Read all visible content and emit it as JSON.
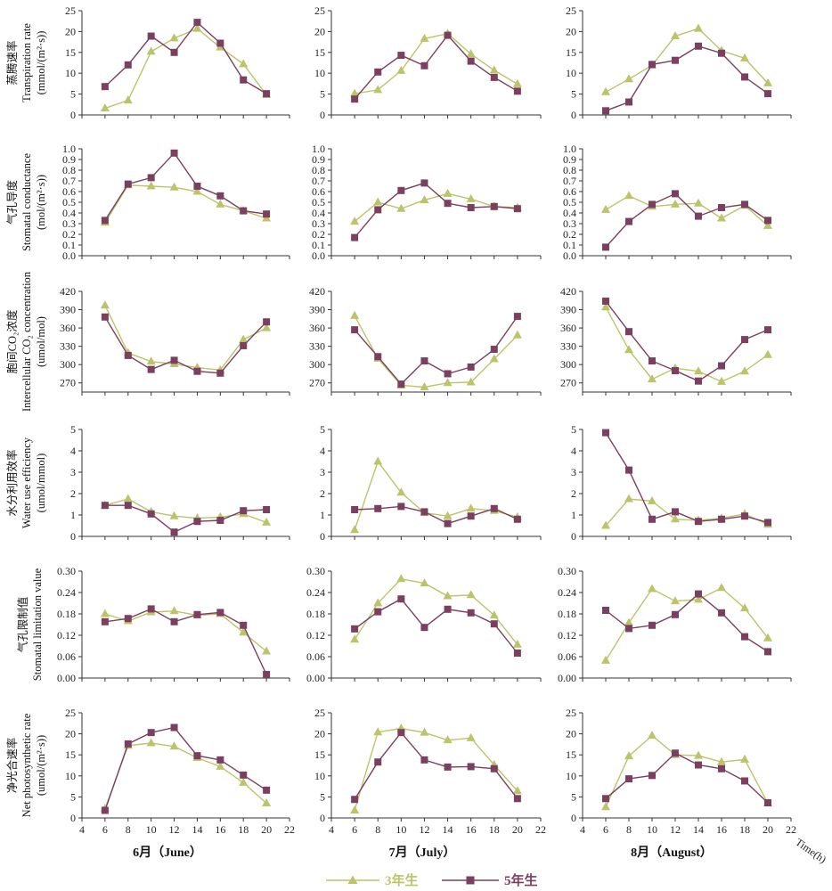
{
  "colors": {
    "series_3yr": "#bcc46a",
    "series_5yr": "#7b3f60",
    "axis": "#333333"
  },
  "legend": {
    "items": [
      {
        "label": "3年生",
        "color": "#bcc46a",
        "marker": "triangle"
      },
      {
        "label": "5年生",
        "color": "#7b3f60",
        "marker": "square"
      }
    ]
  },
  "x_axis": {
    "label": "Time(h)",
    "ticks": [
      4,
      6,
      8,
      10,
      12,
      14,
      16,
      18,
      20,
      22
    ],
    "range": [
      4,
      22
    ]
  },
  "columns": [
    {
      "label": "6月（June）"
    },
    {
      "label": "7月（July）"
    },
    {
      "label": "8月（August）"
    }
  ],
  "rows": [
    {
      "label_cn": "蒸腾速率",
      "label_en": "Transpiration rate",
      "label_unit": "(mmol/(m²·s))",
      "ylim": [
        0,
        25
      ],
      "yticks": [
        "0",
        "5",
        "10",
        "15",
        "20",
        "25"
      ]
    },
    {
      "label_cn": "气孔导度",
      "label_en": "Stomatal conductance",
      "label_unit": "(mol/(m²·s))",
      "ylim": [
        0,
        1.0
      ],
      "yticks": [
        "0.0",
        "0.1",
        "0.2",
        "0.3",
        "0.4",
        "0.5",
        "0.6",
        "0.7",
        "0.8",
        "0.9",
        "1.0"
      ]
    },
    {
      "label_cn": "胞间CO₂浓度",
      "label_en": "Intercellular CO₂ concentration",
      "label_unit": "(umol/mol)",
      "ylim": [
        255,
        420
      ],
      "yticks": [
        "270",
        "300",
        "330",
        "360",
        "390",
        "420"
      ]
    },
    {
      "label_cn": "水分利用效率",
      "label_en": "Water use efficiency",
      "label_unit": "(umol/mmol)",
      "ylim": [
        0,
        5
      ],
      "yticks": [
        "0",
        "1",
        "2",
        "3",
        "4",
        "5"
      ]
    },
    {
      "label_cn": "气孔限制值",
      "label_en": "Stomatal limitation value",
      "label_unit": "",
      "ylim": [
        0,
        0.3
      ],
      "yticks": [
        "0.00",
        "0.06",
        "0.12",
        "0.18",
        "0.24",
        "0.30"
      ]
    },
    {
      "label_cn": "净光合速率",
      "label_en": "Net photosynthetic rate",
      "label_unit": "(umol/(m²·s))",
      "ylim": [
        0,
        25
      ],
      "yticks": [
        "0",
        "5",
        "10",
        "15",
        "20",
        "25"
      ]
    }
  ],
  "chart_data": [
    {
      "type": "line",
      "month": "6月（June）",
      "variable": "Transpiration rate",
      "x": [
        6,
        8,
        10,
        12,
        14,
        16,
        18,
        20
      ],
      "ylim": [
        0,
        25
      ],
      "series": [
        {
          "name": "3年生",
          "values": [
            1.6,
            3.5,
            15.2,
            18.4,
            20.7,
            16.2,
            12.2,
            4.8
          ]
        },
        {
          "name": "5年生",
          "values": [
            6.8,
            12.0,
            18.9,
            15.0,
            22.2,
            17.2,
            8.4,
            5.1
          ]
        }
      ]
    },
    {
      "type": "line",
      "month": "7月（July）",
      "variable": "Transpiration rate",
      "x": [
        6,
        8,
        10,
        12,
        14,
        16,
        18,
        20
      ],
      "ylim": [
        0,
        25
      ],
      "series": [
        {
          "name": "3年生",
          "values": [
            5.1,
            6.0,
            10.6,
            18.3,
            19.5,
            14.6,
            10.7,
            7.4
          ]
        },
        {
          "name": "5年生",
          "values": [
            3.8,
            10.3,
            14.3,
            11.8,
            19.1,
            12.9,
            9.0,
            5.7
          ]
        }
      ]
    },
    {
      "type": "line",
      "month": "8月（August）",
      "variable": "Transpiration rate",
      "x": [
        6,
        8,
        10,
        12,
        14,
        16,
        18,
        20
      ],
      "ylim": [
        0,
        25
      ],
      "series": [
        {
          "name": "3年生",
          "values": [
            5.5,
            8.6,
            11.9,
            18.9,
            20.7,
            15.4,
            13.6,
            7.6
          ]
        },
        {
          "name": "5年生",
          "values": [
            1.0,
            3.1,
            12.1,
            13.1,
            16.5,
            14.8,
            9.1,
            5.1
          ]
        }
      ]
    },
    {
      "type": "line",
      "month": "6月（June）",
      "variable": "Stomatal conductance",
      "x": [
        6,
        8,
        10,
        12,
        14,
        16,
        18,
        20
      ],
      "ylim": [
        0,
        1.0
      ],
      "series": [
        {
          "name": "3年生",
          "values": [
            0.31,
            0.66,
            0.65,
            0.64,
            0.6,
            0.48,
            0.42,
            0.35
          ]
        },
        {
          "name": "5年生",
          "values": [
            0.33,
            0.67,
            0.73,
            0.96,
            0.65,
            0.56,
            0.42,
            0.39
          ]
        }
      ]
    },
    {
      "type": "line",
      "month": "7月（July）",
      "variable": "Stomatal conductance",
      "x": [
        6,
        8,
        10,
        12,
        14,
        16,
        18,
        20
      ],
      "ylim": [
        0,
        1.0
      ],
      "series": [
        {
          "name": "3年生",
          "values": [
            0.32,
            0.5,
            0.44,
            0.52,
            0.58,
            0.53,
            0.46,
            0.45
          ]
        },
        {
          "name": "5年生",
          "values": [
            0.17,
            0.43,
            0.61,
            0.68,
            0.49,
            0.45,
            0.46,
            0.44
          ]
        }
      ]
    },
    {
      "type": "line",
      "month": "8月（August）",
      "variable": "Stomatal conductance",
      "x": [
        6,
        8,
        10,
        12,
        14,
        16,
        18,
        20
      ],
      "ylim": [
        0,
        1.0
      ],
      "series": [
        {
          "name": "3年生",
          "values": [
            0.43,
            0.56,
            0.46,
            0.48,
            0.49,
            0.35,
            0.47,
            0.28
          ]
        },
        {
          "name": "5年生",
          "values": [
            0.08,
            0.32,
            0.48,
            0.58,
            0.37,
            0.45,
            0.48,
            0.33
          ]
        }
      ]
    },
    {
      "type": "line",
      "month": "6月（June）",
      "variable": "Intercellular CO2 concentration",
      "x": [
        6,
        8,
        10,
        12,
        14,
        16,
        18,
        20
      ],
      "ylim": [
        255,
        420
      ],
      "series": [
        {
          "name": "3年生",
          "values": [
            397,
            319,
            305,
            301,
            295,
            291,
            341,
            360
          ]
        },
        {
          "name": "5年生",
          "values": [
            378,
            315,
            292,
            307,
            289,
            286,
            331,
            370
          ]
        }
      ]
    },
    {
      "type": "line",
      "month": "7月（July）",
      "variable": "Intercellular CO2 concentration",
      "x": [
        6,
        8,
        10,
        12,
        14,
        16,
        18,
        20
      ],
      "ylim": [
        255,
        420
      ],
      "series": [
        {
          "name": "3年生",
          "values": [
            380,
            310,
            266,
            263,
            270,
            271,
            309,
            348
          ]
        },
        {
          "name": "5年生",
          "values": [
            357,
            313,
            268,
            306,
            285,
            296,
            325,
            379
          ]
        }
      ]
    },
    {
      "type": "line",
      "month": "8月（August）",
      "variable": "Intercellular CO2 concentration",
      "x": [
        6,
        8,
        10,
        12,
        14,
        16,
        18,
        20
      ],
      "ylim": [
        255,
        420
      ],
      "series": [
        {
          "name": "3年生",
          "values": [
            394,
            324,
            276,
            294,
            289,
            272,
            289,
            316
          ]
        },
        {
          "name": "5年生",
          "values": [
            404,
            354,
            306,
            290,
            273,
            298,
            341,
            357
          ]
        }
      ]
    },
    {
      "type": "line",
      "month": "6月（June）",
      "variable": "Water use efficiency",
      "x": [
        6,
        8,
        10,
        12,
        14,
        16,
        18,
        20
      ],
      "ylim": [
        0,
        5
      ],
      "series": [
        {
          "name": "3年生",
          "values": [
            1.45,
            1.75,
            1.15,
            0.95,
            0.85,
            0.9,
            1.05,
            0.65
          ]
        },
        {
          "name": "5年生",
          "values": [
            1.45,
            1.45,
            1.05,
            0.2,
            0.7,
            0.75,
            1.2,
            1.25
          ]
        }
      ]
    },
    {
      "type": "line",
      "month": "7月（July）",
      "variable": "Water use efficiency",
      "x": [
        6,
        8,
        10,
        12,
        14,
        16,
        18,
        20
      ],
      "ylim": [
        0,
        5
      ],
      "series": [
        {
          "name": "3年生",
          "values": [
            0.3,
            3.5,
            2.05,
            1.1,
            0.95,
            1.3,
            1.2,
            0.9
          ]
        },
        {
          "name": "5年生",
          "values": [
            1.25,
            1.3,
            1.4,
            1.15,
            0.6,
            0.95,
            1.3,
            0.8
          ]
        }
      ]
    },
    {
      "type": "line",
      "month": "8月（August）",
      "variable": "Water use efficiency",
      "x": [
        6,
        8,
        10,
        12,
        14,
        16,
        18,
        20
      ],
      "ylim": [
        0,
        5
      ],
      "series": [
        {
          "name": "3年生",
          "values": [
            0.5,
            1.75,
            1.65,
            0.8,
            0.75,
            0.85,
            1.05,
            0.55
          ]
        },
        {
          "name": "5年生",
          "values": [
            4.85,
            3.1,
            0.8,
            1.15,
            0.7,
            0.8,
            0.95,
            0.65
          ]
        }
      ]
    },
    {
      "type": "line",
      "month": "6月（June）",
      "variable": "Stomatal limitation value",
      "x": [
        6,
        8,
        10,
        12,
        14,
        16,
        18,
        20
      ],
      "ylim": [
        0,
        0.3
      ],
      "series": [
        {
          "name": "3年生",
          "values": [
            0.18,
            0.16,
            0.185,
            0.188,
            0.176,
            0.18,
            0.128,
            0.075
          ]
        },
        {
          "name": "5年生",
          "values": [
            0.158,
            0.167,
            0.194,
            0.158,
            0.178,
            0.184,
            0.148,
            0.01
          ]
        }
      ]
    },
    {
      "type": "line",
      "month": "7月（July）",
      "variable": "Stomatal limitation value",
      "x": [
        6,
        8,
        10,
        12,
        14,
        16,
        18,
        20
      ],
      "ylim": [
        0,
        0.3
      ],
      "series": [
        {
          "name": "3年生",
          "values": [
            0.108,
            0.21,
            0.278,
            0.266,
            0.23,
            0.233,
            0.176,
            0.094
          ]
        },
        {
          "name": "5年生",
          "values": [
            0.138,
            0.186,
            0.222,
            0.142,
            0.193,
            0.183,
            0.152,
            0.07
          ]
        }
      ]
    },
    {
      "type": "line",
      "month": "8月（August）",
      "variable": "Stomatal limitation value",
      "x": [
        6,
        8,
        10,
        12,
        14,
        16,
        18,
        20
      ],
      "ylim": [
        0,
        0.3
      ],
      "series": [
        {
          "name": "3年生",
          "values": [
            0.049,
            0.155,
            0.25,
            0.216,
            0.22,
            0.253,
            0.196,
            0.112
          ]
        },
        {
          "name": "5年生",
          "values": [
            0.19,
            0.139,
            0.148,
            0.178,
            0.236,
            0.183,
            0.116,
            0.074
          ]
        }
      ]
    },
    {
      "type": "line",
      "month": "6月（June）",
      "variable": "Net photosynthetic rate",
      "x": [
        6,
        8,
        10,
        12,
        14,
        16,
        18,
        20
      ],
      "ylim": [
        0,
        25
      ],
      "series": [
        {
          "name": "3年生",
          "values": [
            2.2,
            17.2,
            17.8,
            17.0,
            14.3,
            12.2,
            8.4,
            3.5
          ]
        },
        {
          "name": "5年生",
          "values": [
            1.8,
            17.6,
            20.3,
            21.5,
            14.8,
            13.8,
            10.2,
            6.6
          ]
        }
      ]
    },
    {
      "type": "line",
      "month": "7月（July）",
      "variable": "Net photosynthetic rate",
      "x": [
        6,
        8,
        10,
        12,
        14,
        16,
        18,
        20
      ],
      "ylim": [
        0,
        25
      ],
      "series": [
        {
          "name": "3年生",
          "values": [
            1.8,
            20.4,
            21.3,
            20.3,
            18.5,
            19.0,
            12.6,
            6.4
          ]
        },
        {
          "name": "5年生",
          "values": [
            4.4,
            13.3,
            20.3,
            13.8,
            12.1,
            12.2,
            11.7,
            4.6
          ]
        }
      ]
    },
    {
      "type": "line",
      "month": "8月（August）",
      "variable": "Net photosynthetic rate",
      "x": [
        6,
        8,
        10,
        12,
        14,
        16,
        18,
        20
      ],
      "ylim": [
        0,
        25
      ],
      "series": [
        {
          "name": "3年生",
          "values": [
            2.6,
            14.7,
            19.6,
            15.0,
            14.8,
            13.3,
            13.9,
            3.5
          ]
        },
        {
          "name": "5年生",
          "values": [
            4.6,
            9.3,
            10.1,
            15.4,
            12.6,
            11.7,
            8.8,
            3.6
          ]
        }
      ]
    }
  ]
}
